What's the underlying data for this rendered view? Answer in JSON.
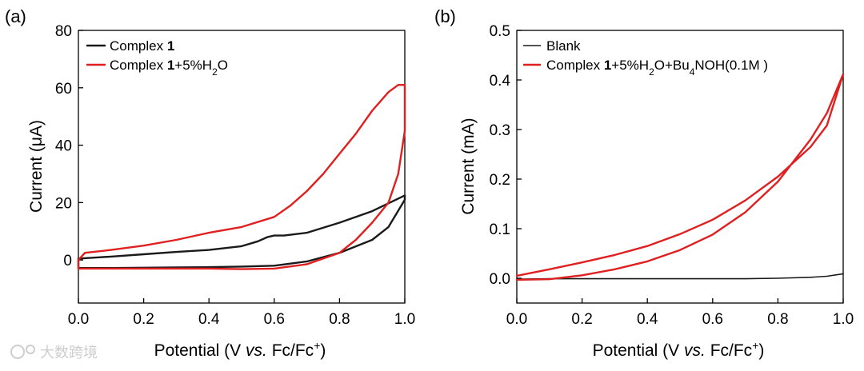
{
  "chart_data": [
    {
      "panel": "(a)",
      "type": "line",
      "xlabel_main": "Potential (V ",
      "xlabel_italic": "vs.",
      "xlabel_tail": " Fc/Fc",
      "xlabel_sup": "+",
      "xlabel_close": ")",
      "ylabel": "Current (μA)",
      "xlim": [
        0.0,
        1.0
      ],
      "ylim": [
        -15,
        80
      ],
      "xticks": [
        "0.0",
        "0.2",
        "0.4",
        "0.6",
        "0.8",
        "1.0"
      ],
      "yticks": [
        "0",
        "20",
        "40",
        "60",
        "80"
      ],
      "legend": [
        {
          "name_main": "Complex ",
          "name_bold": "1",
          "name_tail": "",
          "color": "#1a1a1a"
        },
        {
          "name_main": "Complex ",
          "name_bold": "1",
          "name_tail": "+5%H",
          "name_sub": "2",
          "name_end": "O",
          "color": "#e02020"
        }
      ],
      "series": [
        {
          "name": "Complex 1",
          "color": "#1a1a1a",
          "x": [
            0.0,
            0.1,
            0.2,
            0.3,
            0.4,
            0.5,
            0.55,
            0.58,
            0.6,
            0.63,
            0.7,
            0.8,
            0.9,
            1.0,
            1.0,
            0.95,
            0.9,
            0.8,
            0.7,
            0.6,
            0.5,
            0.4,
            0.3,
            0.2,
            0.1,
            0.0,
            0.0
          ],
          "y": [
            0.5,
            1.2,
            2.0,
            2.8,
            3.5,
            4.8,
            6.5,
            8.0,
            8.5,
            8.5,
            9.5,
            13.0,
            17.0,
            22.5,
            21.0,
            11.5,
            7.0,
            2.5,
            -0.5,
            -2.0,
            -2.3,
            -2.5,
            -2.6,
            -2.7,
            -2.8,
            -2.8,
            0.5
          ]
        },
        {
          "name": "Complex 1+5%H2O",
          "color": "#e02020",
          "x": [
            0.0,
            0.02,
            0.1,
            0.2,
            0.3,
            0.4,
            0.5,
            0.6,
            0.65,
            0.7,
            0.75,
            0.8,
            0.85,
            0.9,
            0.95,
            0.98,
            1.0,
            1.0,
            0.98,
            0.95,
            0.9,
            0.85,
            0.8,
            0.7,
            0.6,
            0.5,
            0.4,
            0.3,
            0.2,
            0.1,
            0.0,
            0.0
          ],
          "y": [
            0.0,
            2.5,
            3.5,
            5.0,
            7.0,
            9.5,
            11.5,
            15.0,
            19.0,
            24.0,
            30.0,
            37.0,
            44.0,
            52.0,
            58.5,
            61.0,
            61.0,
            45.0,
            30.0,
            20.0,
            13.0,
            7.0,
            2.5,
            -1.5,
            -3.0,
            -3.2,
            -3.0,
            -3.0,
            -3.0,
            -3.0,
            -3.0,
            0.0
          ]
        }
      ]
    },
    {
      "panel": "(b)",
      "type": "line",
      "xlabel_main": "Potential (V ",
      "xlabel_italic": "vs.",
      "xlabel_tail": " Fc/Fc",
      "xlabel_sup": "+",
      "xlabel_close": ")",
      "ylabel": "Current (mA)",
      "xlim": [
        0.0,
        1.0
      ],
      "ylim": [
        -0.05,
        0.5
      ],
      "xticks": [
        "0.0",
        "0.2",
        "0.4",
        "0.6",
        "0.8",
        "1.0"
      ],
      "yticks": [
        "0.0",
        "0.1",
        "0.2",
        "0.3",
        "0.4",
        "0.5"
      ],
      "legend": [
        {
          "name_main": "Blank",
          "color": "#1a1a1a"
        },
        {
          "name_main": "Complex ",
          "name_bold": "1",
          "name_tail": "+5%H",
          "name_sub": "2",
          "name_end": "O+Bu",
          "name_sub2": "4",
          "name_end2": "NOH(0.1M )",
          "color": "#e02020"
        }
      ],
      "series": [
        {
          "name": "Blank",
          "color": "#1a1a1a",
          "x": [
            0.0,
            0.1,
            0.2,
            0.3,
            0.4,
            0.5,
            0.6,
            0.7,
            0.8,
            0.9,
            0.95,
            1.0
          ],
          "y": [
            -0.002,
            -0.001,
            -0.001,
            -0.001,
            -0.001,
            -0.001,
            -0.001,
            -0.001,
            0.0,
            0.002,
            0.004,
            0.009
          ]
        },
        {
          "name": "Complex 1+5%H2O+Bu4NOH(0.1M )",
          "color": "#e02020",
          "x": [
            0.0,
            0.1,
            0.2,
            0.3,
            0.4,
            0.5,
            0.6,
            0.7,
            0.8,
            0.9,
            0.95,
            1.0,
            1.0,
            0.95,
            0.9,
            0.8,
            0.7,
            0.6,
            0.5,
            0.4,
            0.3,
            0.2,
            0.1,
            0.0
          ],
          "y": [
            0.005,
            0.018,
            0.032,
            0.047,
            0.065,
            0.089,
            0.118,
            0.157,
            0.205,
            0.265,
            0.308,
            0.412,
            0.412,
            0.333,
            0.28,
            0.195,
            0.133,
            0.088,
            0.057,
            0.034,
            0.018,
            0.006,
            -0.002,
            -0.003
          ]
        }
      ]
    }
  ],
  "watermark": "大数跨境"
}
